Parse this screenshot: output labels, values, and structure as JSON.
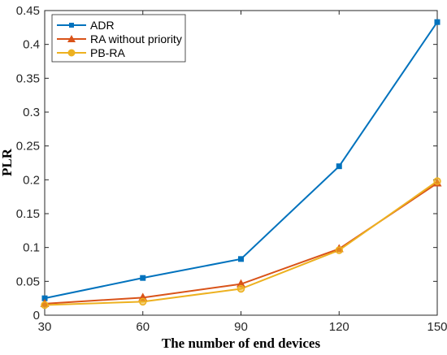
{
  "chart_data": {
    "type": "line",
    "xlabel": "The number of end devices",
    "ylabel": "PLR",
    "x": [
      30,
      60,
      90,
      120,
      150
    ],
    "xlim": [
      30,
      150
    ],
    "ylim": [
      0,
      0.45
    ],
    "xticks": [
      "30",
      "60",
      "90",
      "120",
      "150"
    ],
    "yticks": [
      "0",
      "0.05",
      "0.1",
      "0.15",
      "0.2",
      "0.25",
      "0.3",
      "0.35",
      "0.4",
      "0.45"
    ],
    "grid": false,
    "legend_position": "top-left",
    "series": [
      {
        "name": "ADR",
        "values": [
          0.025,
          0.055,
          0.083,
          0.22,
          0.433
        ],
        "color": "#0072BD",
        "marker": "square"
      },
      {
        "name": "RA without priority",
        "values": [
          0.017,
          0.026,
          0.046,
          0.098,
          0.195
        ],
        "color": "#D95319",
        "marker": "triangle"
      },
      {
        "name": "PB-RA",
        "values": [
          0.015,
          0.02,
          0.039,
          0.096,
          0.198
        ],
        "color": "#EDB120",
        "marker": "circle"
      }
    ]
  }
}
